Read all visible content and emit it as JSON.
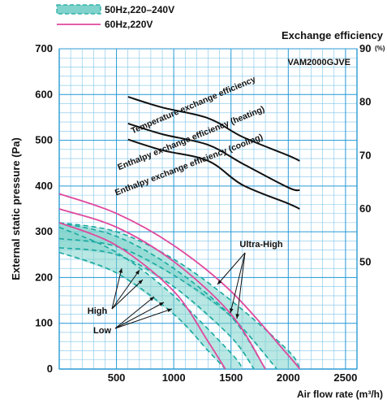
{
  "chart_data": {
    "type": "line",
    "model": "VAM2000GJVE",
    "legend": [
      {
        "label": "50Hz,220–240V",
        "style": "band-dashed",
        "color": "#1aa9a0",
        "fill": "#7fd3cc"
      },
      {
        "label": "60Hz,220V",
        "style": "solid",
        "color": "#e0499e"
      }
    ],
    "xlabel": "Air flow rate (m³/h)",
    "ylabel": "External static pressure (Pa)",
    "y2label": "Exchange efficiency",
    "y2unit": "(%)",
    "xlim": [
      0,
      2600
    ],
    "ylim": [
      0,
      700
    ],
    "y2lim": [
      30,
      90
    ],
    "x_ticks": [
      500,
      1000,
      1500,
      2000,
      2500
    ],
    "y_ticks": [
      0,
      100,
      200,
      300,
      400,
      500,
      600,
      700
    ],
    "y2_ticks": [
      50,
      60,
      70,
      80,
      90
    ],
    "x_tick_labels": [
      "500",
      "1000",
      "1500",
      "2000",
      "2500"
    ],
    "y_tick_labels": [
      "0",
      "100",
      "200",
      "300",
      "400",
      "500",
      "600",
      "700"
    ],
    "y2_tick_labels": [
      "50",
      "60",
      "70",
      "80",
      "90"
    ],
    "grid": true,
    "fan_curves": [
      {
        "name": "Ultra-High",
        "freq": "50Hz",
        "points": [
          [
            0,
            320
          ],
          [
            500,
            300
          ],
          [
            1000,
            240
          ],
          [
            1500,
            150
          ],
          [
            2000,
            40
          ],
          [
            2100,
            0
          ]
        ]
      },
      {
        "name": "Ultra-High",
        "freq": "50Hz",
        "points": [
          [
            0,
            285
          ],
          [
            500,
            268
          ],
          [
            1000,
            205
          ],
          [
            1500,
            115
          ],
          [
            1900,
            0
          ]
        ]
      },
      {
        "name": "High",
        "freq": "50Hz",
        "points": [
          [
            0,
            320
          ],
          [
            500,
            290
          ],
          [
            1000,
            220
          ],
          [
            1500,
            115
          ],
          [
            1800,
            0
          ]
        ]
      },
      {
        "name": "High",
        "freq": "50Hz",
        "points": [
          [
            0,
            265
          ],
          [
            500,
            250
          ],
          [
            1000,
            180
          ],
          [
            1500,
            70
          ],
          [
            1700,
            0
          ]
        ]
      },
      {
        "name": "Low",
        "freq": "50Hz",
        "points": [
          [
            0,
            310
          ],
          [
            500,
            255
          ],
          [
            1000,
            160
          ],
          [
            1500,
            35
          ],
          [
            1600,
            0
          ]
        ]
      },
      {
        "name": "Low",
        "freq": "50Hz",
        "points": [
          [
            0,
            255
          ],
          [
            500,
            210
          ],
          [
            1000,
            120
          ],
          [
            1300,
            40
          ],
          [
            1450,
            0
          ]
        ]
      },
      {
        "name": "Ultra-High",
        "freq": "60Hz",
        "points": [
          [
            0,
            383
          ],
          [
            500,
            340
          ],
          [
            1000,
            270
          ],
          [
            1500,
            170
          ],
          [
            2000,
            30
          ],
          [
            2100,
            0
          ]
        ]
      },
      {
        "name": "High",
        "freq": "60Hz",
        "points": [
          [
            0,
            350
          ],
          [
            500,
            310
          ],
          [
            1000,
            235
          ],
          [
            1500,
            120
          ],
          [
            1800,
            0
          ]
        ]
      },
      {
        "name": "Low",
        "freq": "60Hz",
        "points": [
          [
            0,
            320
          ],
          [
            500,
            270
          ],
          [
            1000,
            170
          ],
          [
            1300,
            60
          ],
          [
            1450,
            0
          ]
        ]
      }
    ],
    "efficiency_curves": [
      {
        "name": "Temperature exchange efficiency",
        "points": [
          [
            600,
            81
          ],
          [
            900,
            79
          ],
          [
            1300,
            77
          ],
          [
            1600,
            73.5
          ],
          [
            2000,
            70
          ],
          [
            2100,
            69
          ]
        ]
      },
      {
        "name": "Enthalpy exchange efficiency (heating)",
        "points": [
          [
            600,
            76
          ],
          [
            900,
            74
          ],
          [
            1300,
            72
          ],
          [
            1600,
            68.5
          ],
          [
            2000,
            64
          ],
          [
            2100,
            63.5
          ]
        ]
      },
      {
        "name": "Enthalpy exchange efficiency (cooling)",
        "points": [
          [
            600,
            73
          ],
          [
            900,
            71
          ],
          [
            1300,
            69
          ],
          [
            1600,
            64.5
          ],
          [
            2000,
            61
          ],
          [
            2100,
            60
          ]
        ]
      }
    ],
    "annotations": {
      "ultra_high": "Ultra-High",
      "high": "High",
      "low": "Low"
    }
  }
}
